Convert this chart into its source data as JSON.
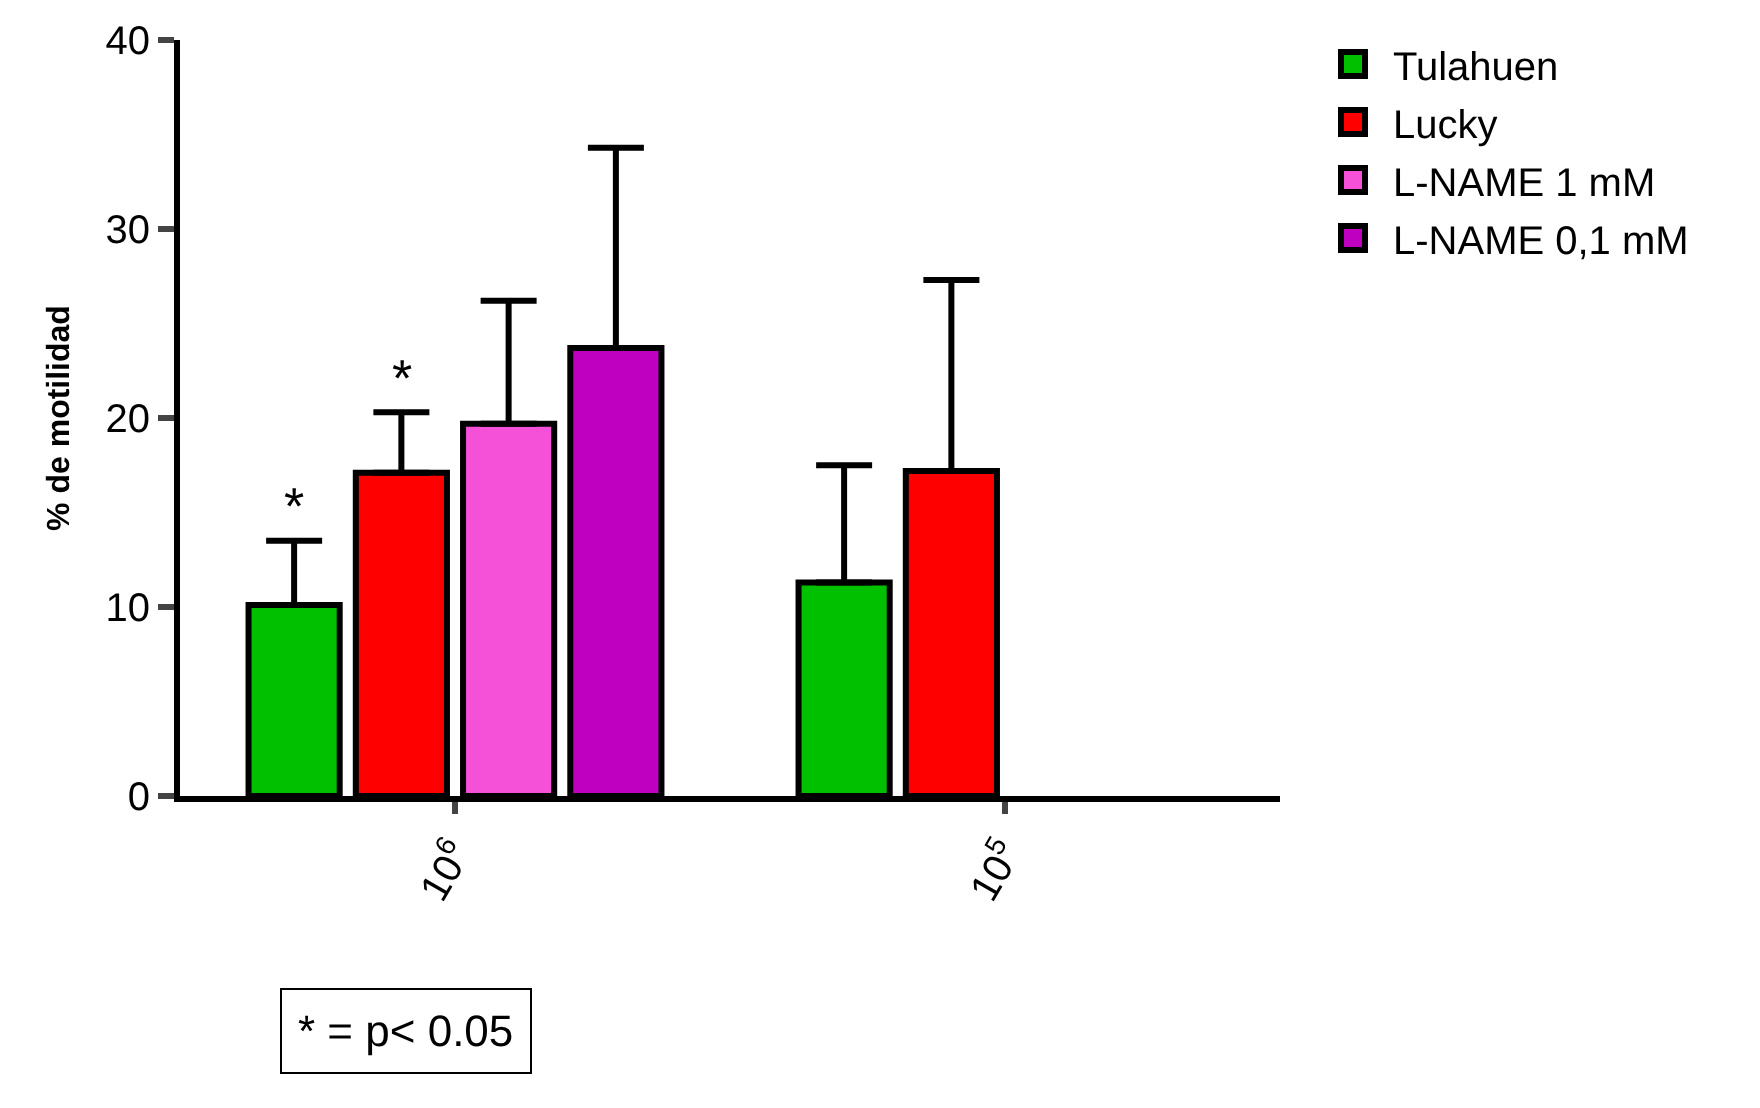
{
  "chart_data": {
    "type": "bar",
    "ylabel": "% de motilidad",
    "categories": [
      "10$^{6}$",
      "10$^{5}$"
    ],
    "series": [
      {
        "name": "Tulahuen",
        "color": "#00c000",
        "values": [
          10.1,
          11.3
        ],
        "errors": [
          [
            10.1,
            13.5
          ],
          [
            11.3,
            17.5
          ]
        ]
      },
      {
        "name": "Lucky",
        "color": "#ff0000",
        "values": [
          17.1,
          17.2
        ],
        "errors": [
          [
            17.1,
            20.3
          ],
          [
            17.2,
            27.3
          ]
        ]
      },
      {
        "name": "L-NAME 1 mM",
        "color": "#f550d8",
        "values": [
          19.7,
          null
        ],
        "errors": [
          [
            19.7,
            26.2
          ],
          null
        ]
      },
      {
        "name": "L-NAME 0,1 mM",
        "color": "#c000c0",
        "values": [
          23.7,
          null
        ],
        "errors": [
          [
            23.7,
            34.3
          ],
          null
        ]
      }
    ],
    "ylim": [
      0,
      40
    ],
    "yticks": [
      0,
      10,
      20,
      30,
      40
    ],
    "grid": false,
    "legend": "top right",
    "annotations": [
      "*",
      "*",
      "* = p< 0.05"
    ]
  }
}
